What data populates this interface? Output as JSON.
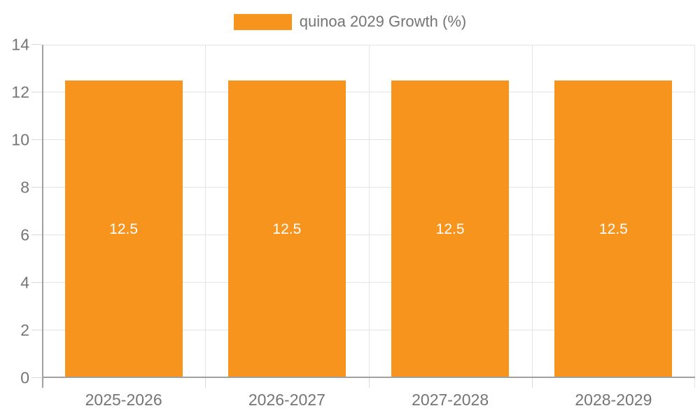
{
  "legend": {
    "label": "quinoa 2029 Growth (%)"
  },
  "colors": {
    "bar": "#F7941E",
    "axis_line": "#A0A0A0",
    "gridline": "#E3E3E3",
    "tick": "#D9D9D9",
    "axis_text": "#757575",
    "bar_label_text": "#FFFFFF",
    "background": "#FFFFFF"
  },
  "chart_data": {
    "type": "bar",
    "title": "",
    "categories": [
      "2025-2026",
      "2026-2027",
      "2027-2028",
      "2028-2029"
    ],
    "series": [
      {
        "name": "quinoa 2029 Growth (%)",
        "values": [
          12.5,
          12.5,
          12.5,
          12.5
        ]
      }
    ],
    "bar_labels": [
      "12.5",
      "12.5",
      "12.5",
      "12.5"
    ],
    "xlabel": "",
    "ylabel": "",
    "ylim": [
      0,
      14
    ],
    "yticks": [
      0,
      2,
      4,
      6,
      8,
      10,
      12,
      14
    ],
    "grid": true,
    "legend_position": "top-center",
    "bar_label_position": "middle"
  }
}
